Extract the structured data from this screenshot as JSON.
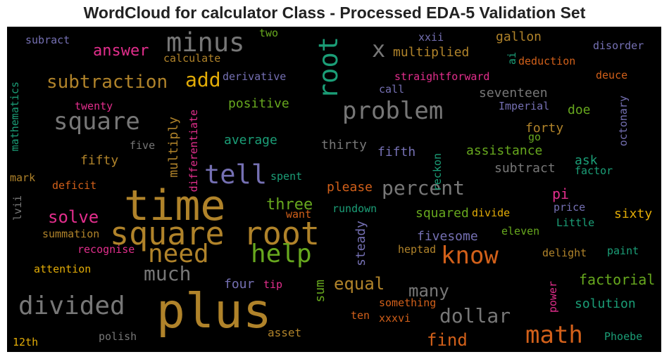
{
  "title": "WordCloud for calculator Class - Processed EDA-5 Validation Set",
  "palette": {
    "gray": "#777777",
    "gold": "#b0832a",
    "orange": "#d2601a",
    "pink": "#e22e8c",
    "green": "#67a81e",
    "teal": "#1b9e77",
    "purple": "#7570b3",
    "yellow": "#e2ac07",
    "background": "#000000"
  },
  "words": [
    "plus",
    "time",
    "square root",
    "tell",
    "root",
    "minus",
    "square",
    "problem",
    "divided",
    "need",
    "help",
    "know",
    "math",
    "percent",
    "x",
    "add",
    "subtraction",
    "answer",
    "dollar",
    "much",
    "three",
    "solve",
    "many",
    "equal",
    "find",
    "factorial",
    "solution",
    "positive",
    "average",
    "multiply",
    "fifty",
    "fifth",
    "assistance",
    "thirty",
    "subtract",
    "ask",
    "forty",
    "doe",
    "pi",
    "sixty",
    "gallon",
    "multiplied",
    "seventeen",
    "deduction",
    "derivative",
    "straightforward",
    "squared",
    "fivesome",
    "steady",
    "four",
    "sum",
    "please",
    "rundown",
    "divide",
    "eleven",
    "Little",
    "paint",
    "delight",
    "heptad",
    "something",
    "xxxvi",
    "ten",
    "asset",
    "power",
    "polish",
    "12th",
    "Phoebe",
    "tip",
    "attention",
    "summation",
    "recognise",
    "deficit",
    "lvii",
    "mark",
    "mathematics",
    "twenty",
    "five",
    "differentiate",
    "spent",
    "want",
    "reckon",
    "subract",
    "calculate",
    "two",
    "call",
    "Imperial",
    "ai",
    "disorder",
    "deuce",
    "octonary",
    "go",
    "factor",
    "price",
    "xxii"
  ]
}
